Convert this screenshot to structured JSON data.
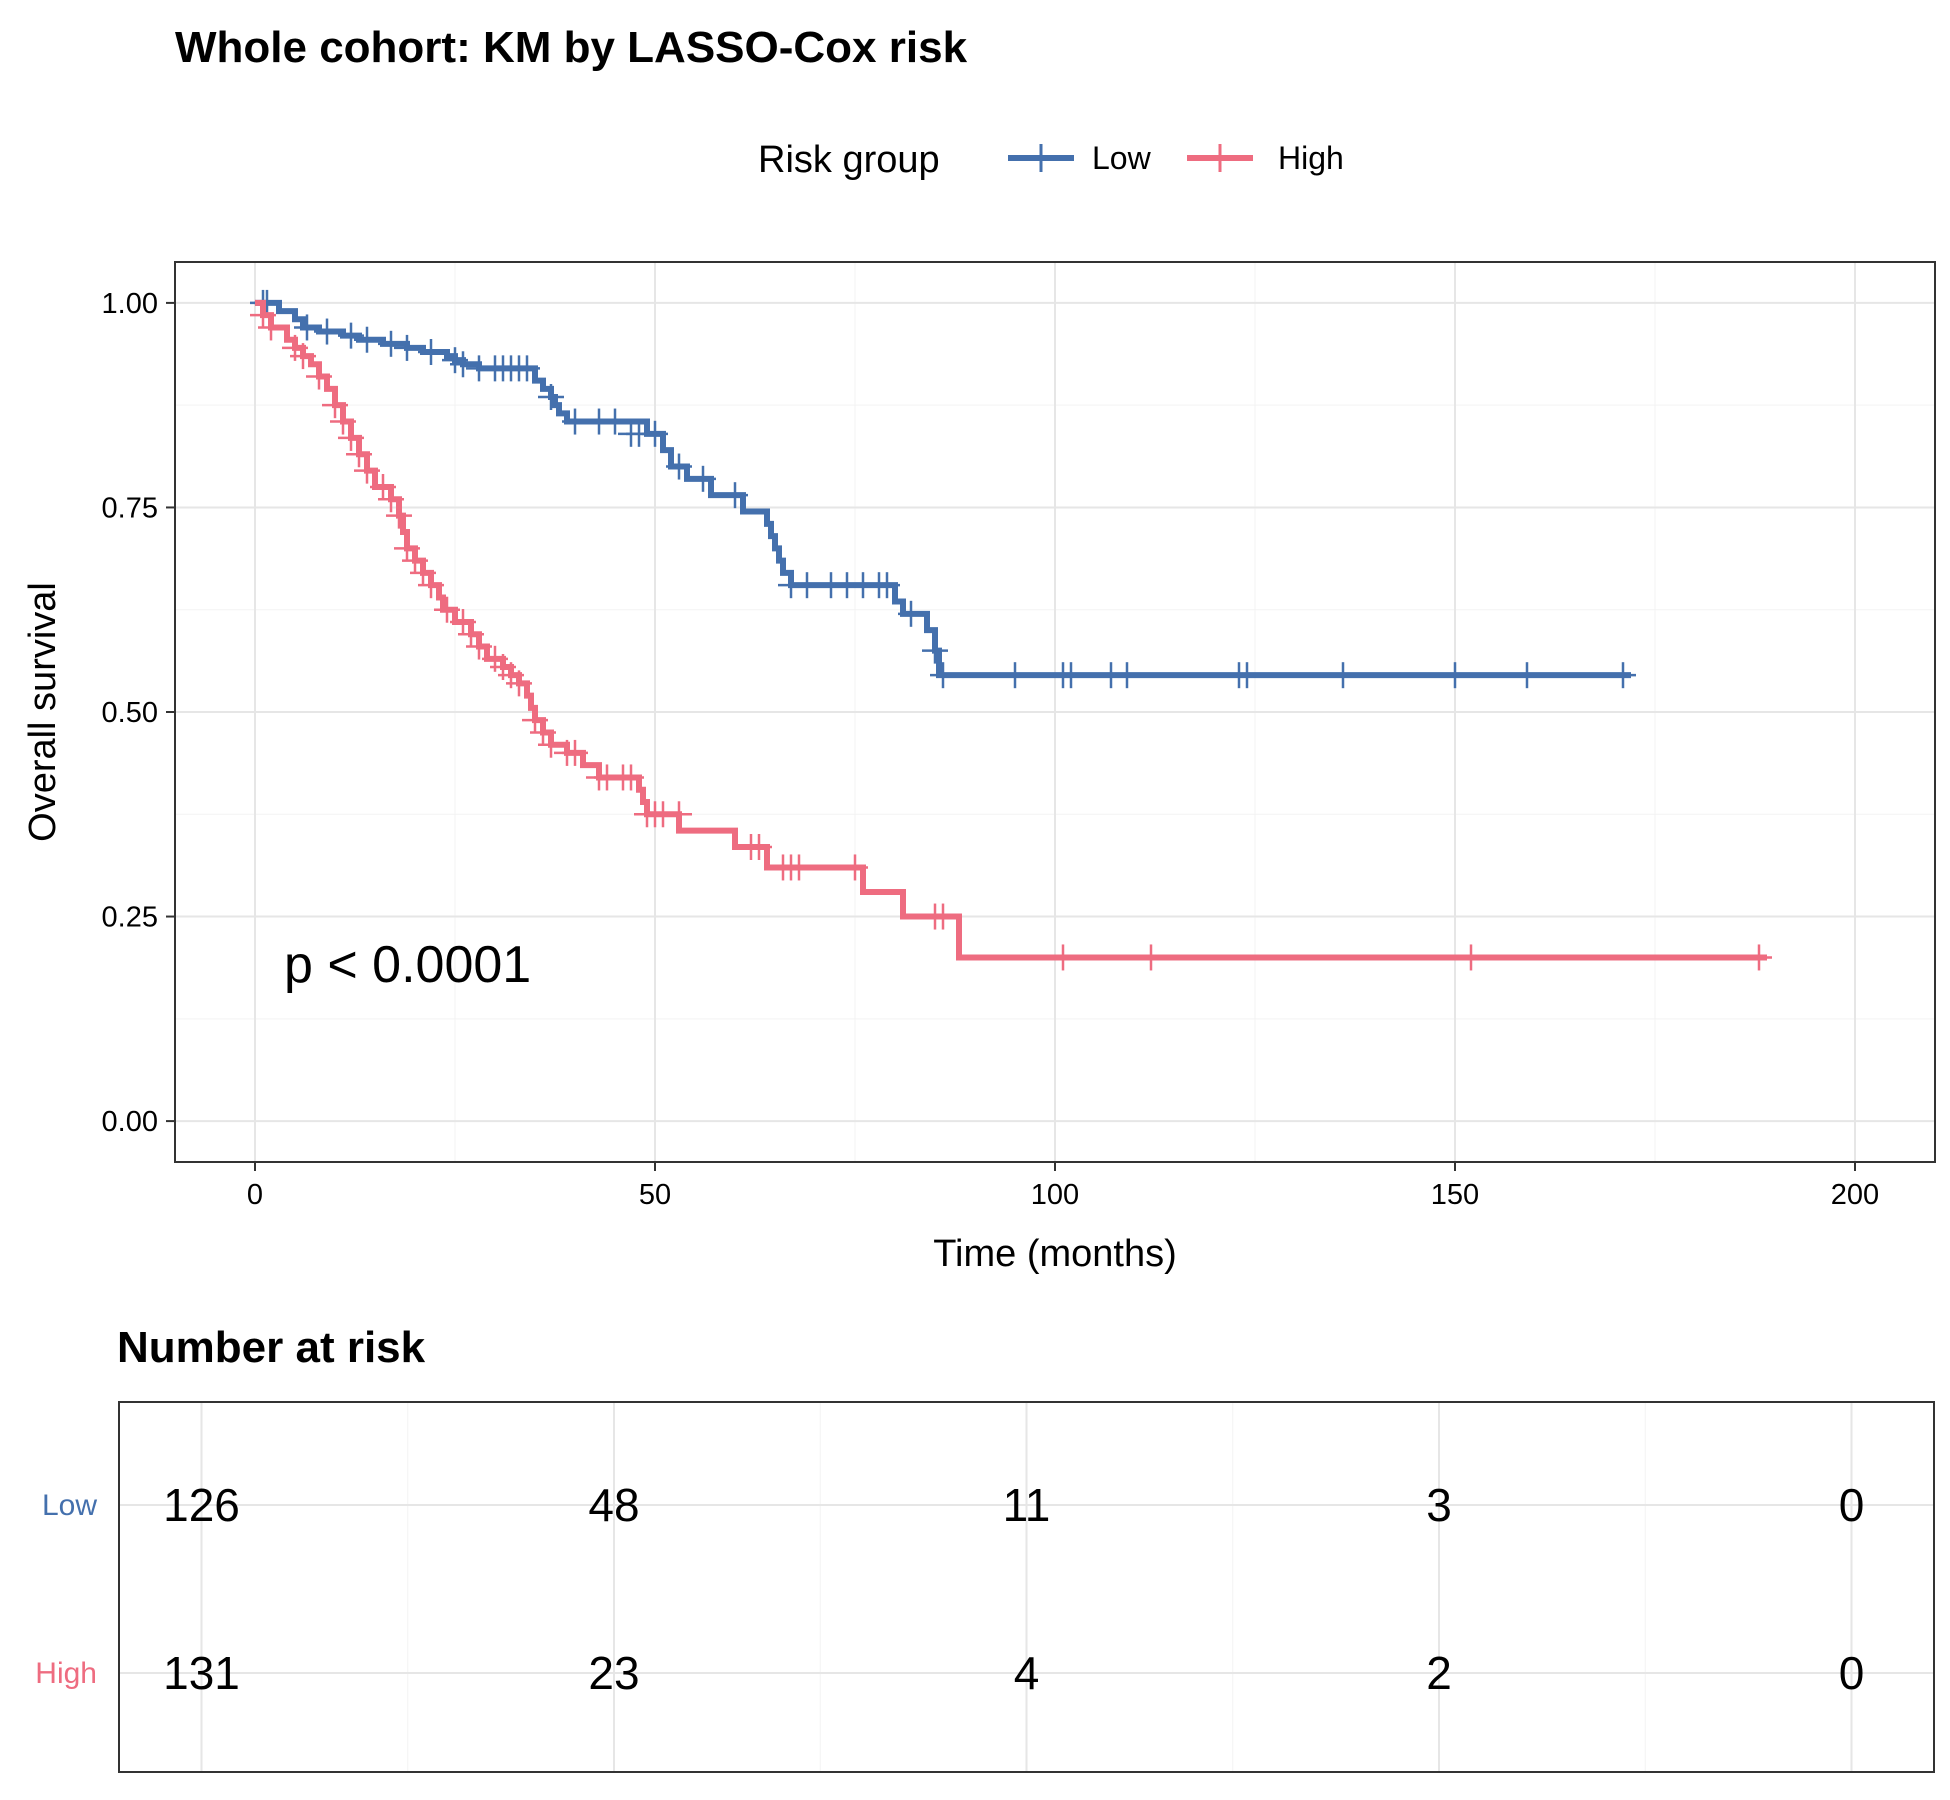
{
  "chart_data": [
    {
      "type": "line",
      "title": "Whole cohort: KM by LASSO-Cox risk",
      "xlabel": "Time (months)",
      "ylabel": "Overall survival",
      "xlim": [
        -10,
        210
      ],
      "ylim": [
        -0.05,
        1.05
      ],
      "x_ticks": [
        0,
        50,
        100,
        150,
        200
      ],
      "y_ticks": [
        0,
        0.25,
        0.5,
        0.75,
        1.0
      ],
      "x_tick_labels": [
        "0",
        "50",
        "100",
        "150",
        "200"
      ],
      "y_tick_labels": [
        "0.00",
        "0.25",
        "0.50",
        "0.75",
        "1.00"
      ],
      "grid": true,
      "legend": {
        "title": "Risk group",
        "position": "top",
        "entries": [
          "Low",
          "High"
        ]
      },
      "annotation": "p < 0.0001",
      "series": [
        {
          "name": "Low",
          "color": "#4470ad",
          "steps": [
            [
              0,
              1.0
            ],
            [
              1.5,
              1.0
            ],
            [
              3,
              0.99
            ],
            [
              5,
              0.98
            ],
            [
              6,
              0.97
            ],
            [
              8,
              0.965
            ],
            [
              11,
              0.96
            ],
            [
              13,
              0.955
            ],
            [
              16,
              0.95
            ],
            [
              19,
              0.945
            ],
            [
              21,
              0.94
            ],
            [
              24,
              0.935
            ],
            [
              25,
              0.93
            ],
            [
              26,
              0.925
            ],
            [
              28,
              0.92
            ],
            [
              35,
              0.905
            ],
            [
              36,
              0.895
            ],
            [
              37,
              0.885
            ],
            [
              37.5,
              0.875
            ],
            [
              38,
              0.865
            ],
            [
              39,
              0.855
            ],
            [
              49,
              0.84
            ],
            [
              51,
              0.82
            ],
            [
              52,
              0.8
            ],
            [
              54,
              0.785
            ],
            [
              57,
              0.765
            ],
            [
              61,
              0.745
            ],
            [
              64,
              0.73
            ],
            [
              64.5,
              0.715
            ],
            [
              65,
              0.7
            ],
            [
              65.5,
              0.685
            ],
            [
              66,
              0.67
            ],
            [
              67,
              0.655
            ],
            [
              80,
              0.635
            ],
            [
              81,
              0.62
            ],
            [
              84,
              0.6
            ],
            [
              85,
              0.575
            ],
            [
              85.5,
              0.545
            ],
            [
              172,
              0.545
            ]
          ],
          "censors": [
            [
              1,
              1.0
            ],
            [
              1.5,
              1.0
            ],
            [
              6.5,
              0.97
            ],
            [
              9,
              0.965
            ],
            [
              12,
              0.96
            ],
            [
              14,
              0.955
            ],
            [
              17,
              0.95
            ],
            [
              19,
              0.945
            ],
            [
              22,
              0.94
            ],
            [
              25,
              0.93
            ],
            [
              26,
              0.925
            ],
            [
              28,
              0.92
            ],
            [
              30,
              0.92
            ],
            [
              31,
              0.92
            ],
            [
              32,
              0.92
            ],
            [
              33,
              0.92
            ],
            [
              34,
              0.92
            ],
            [
              37,
              0.885
            ],
            [
              40,
              0.855
            ],
            [
              43,
              0.855
            ],
            [
              45,
              0.855
            ],
            [
              47,
              0.84
            ],
            [
              48,
              0.84
            ],
            [
              50,
              0.84
            ],
            [
              53,
              0.8
            ],
            [
              56,
              0.785
            ],
            [
              60,
              0.765
            ],
            [
              67,
              0.655
            ],
            [
              69,
              0.655
            ],
            [
              72,
              0.655
            ],
            [
              74,
              0.655
            ],
            [
              76,
              0.655
            ],
            [
              78,
              0.655
            ],
            [
              79,
              0.655
            ],
            [
              82,
              0.62
            ],
            [
              85,
              0.575
            ],
            [
              86,
              0.545
            ],
            [
              95,
              0.545
            ],
            [
              101,
              0.545
            ],
            [
              102,
              0.545
            ],
            [
              107,
              0.545
            ],
            [
              109,
              0.545
            ],
            [
              123,
              0.545
            ],
            [
              124,
              0.545
            ],
            [
              136,
              0.545
            ],
            [
              150,
              0.545
            ],
            [
              159,
              0.545
            ],
            [
              171,
              0.545
            ]
          ]
        },
        {
          "name": "High",
          "color": "#ee6c80",
          "steps": [
            [
              0,
              1.0
            ],
            [
              1,
              0.985
            ],
            [
              2,
              0.97
            ],
            [
              4,
              0.955
            ],
            [
              5,
              0.945
            ],
            [
              6,
              0.935
            ],
            [
              7,
              0.925
            ],
            [
              8,
              0.91
            ],
            [
              9,
              0.895
            ],
            [
              10,
              0.875
            ],
            [
              11,
              0.855
            ],
            [
              12,
              0.835
            ],
            [
              13,
              0.815
            ],
            [
              14,
              0.795
            ],
            [
              15,
              0.775
            ],
            [
              17,
              0.76
            ],
            [
              18,
              0.74
            ],
            [
              18.5,
              0.72
            ],
            [
              19,
              0.7
            ],
            [
              20,
              0.685
            ],
            [
              21,
              0.67
            ],
            [
              22,
              0.655
            ],
            [
              23,
              0.64
            ],
            [
              23.5,
              0.625
            ],
            [
              25,
              0.61
            ],
            [
              27,
              0.595
            ],
            [
              28,
              0.58
            ],
            [
              29,
              0.565
            ],
            [
              31,
              0.555
            ],
            [
              32,
              0.545
            ],
            [
              33,
              0.535
            ],
            [
              34,
              0.52
            ],
            [
              34.5,
              0.505
            ],
            [
              35,
              0.49
            ],
            [
              36,
              0.475
            ],
            [
              37,
              0.46
            ],
            [
              39,
              0.45
            ],
            [
              41,
              0.435
            ],
            [
              43,
              0.42
            ],
            [
              48,
              0.405
            ],
            [
              48.5,
              0.39
            ],
            [
              49,
              0.375
            ],
            [
              53,
              0.355
            ],
            [
              60,
              0.335
            ],
            [
              64,
              0.31
            ],
            [
              76,
              0.28
            ],
            [
              81,
              0.25
            ],
            [
              88,
              0.2
            ],
            [
              189,
              0.2
            ]
          ],
          "censors": [
            [
              1,
              0.985
            ],
            [
              2,
              0.97
            ],
            [
              5,
              0.945
            ],
            [
              6,
              0.935
            ],
            [
              8,
              0.91
            ],
            [
              10,
              0.875
            ],
            [
              11,
              0.855
            ],
            [
              12,
              0.835
            ],
            [
              13,
              0.815
            ],
            [
              14,
              0.795
            ],
            [
              16,
              0.775
            ],
            [
              17,
              0.76
            ],
            [
              18,
              0.74
            ],
            [
              19,
              0.7
            ],
            [
              20,
              0.685
            ],
            [
              21,
              0.67
            ],
            [
              22,
              0.655
            ],
            [
              24,
              0.625
            ],
            [
              26,
              0.61
            ],
            [
              27,
              0.595
            ],
            [
              28,
              0.58
            ],
            [
              30,
              0.565
            ],
            [
              31,
              0.555
            ],
            [
              32,
              0.545
            ],
            [
              33,
              0.535
            ],
            [
              35,
              0.49
            ],
            [
              36,
              0.475
            ],
            [
              37,
              0.46
            ],
            [
              39,
              0.45
            ],
            [
              40,
              0.45
            ],
            [
              43,
              0.42
            ],
            [
              44,
              0.42
            ],
            [
              46,
              0.42
            ],
            [
              47,
              0.42
            ],
            [
              49,
              0.375
            ],
            [
              50,
              0.375
            ],
            [
              51,
              0.375
            ],
            [
              53,
              0.375
            ],
            [
              62,
              0.335
            ],
            [
              63,
              0.335
            ],
            [
              66,
              0.31
            ],
            [
              67,
              0.31
            ],
            [
              68,
              0.31
            ],
            [
              75,
              0.31
            ],
            [
              85,
              0.25
            ],
            [
              86,
              0.25
            ],
            [
              101,
              0.2
            ],
            [
              112,
              0.2
            ],
            [
              152,
              0.2
            ],
            [
              188,
              0.2
            ]
          ]
        }
      ]
    },
    {
      "type": "table",
      "title": "Number at risk",
      "time_points": [
        0,
        50,
        100,
        150,
        200
      ],
      "rows": [
        {
          "name": "Low",
          "color": "#4470ad",
          "values": [
            "126",
            "48",
            "11",
            "3",
            "0"
          ]
        },
        {
          "name": "High",
          "color": "#ee6c80",
          "values": [
            "131",
            "23",
            "4",
            "2",
            "0"
          ]
        }
      ]
    }
  ]
}
